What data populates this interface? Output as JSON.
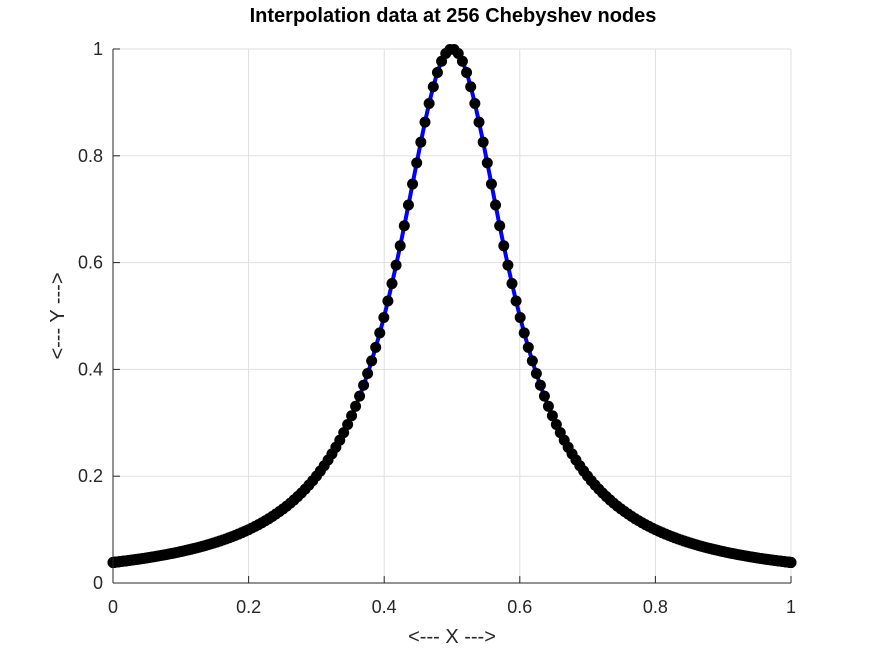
{
  "chart_data": {
    "type": "line",
    "title": "Interpolation data at 256 Chebyshev nodes",
    "xlabel": "<--- X --->",
    "ylabel": "<--- Y --->",
    "xlim": [
      0,
      1
    ],
    "ylim": [
      0,
      1
    ],
    "xticks": [
      0,
      0.2,
      0.4,
      0.6,
      0.8,
      1
    ],
    "xtick_labels": [
      "0",
      "0.2",
      "0.4",
      "0.6",
      "0.8",
      "1"
    ],
    "yticks": [
      0,
      0.2,
      0.4,
      0.6,
      0.8,
      1
    ],
    "ytick_labels": [
      "0",
      "0.2",
      "0.4",
      "0.6",
      "0.8",
      "1"
    ],
    "grid": true,
    "function": "1 / (1 + 100 * (x - 0.5)^2)",
    "node_count": 256,
    "node_distribution": "chebyshev",
    "series": [
      {
        "kind": "line",
        "color": "#0000ff"
      },
      {
        "kind": "markers",
        "marker": "filled-circle",
        "color": "#000000"
      }
    ]
  }
}
